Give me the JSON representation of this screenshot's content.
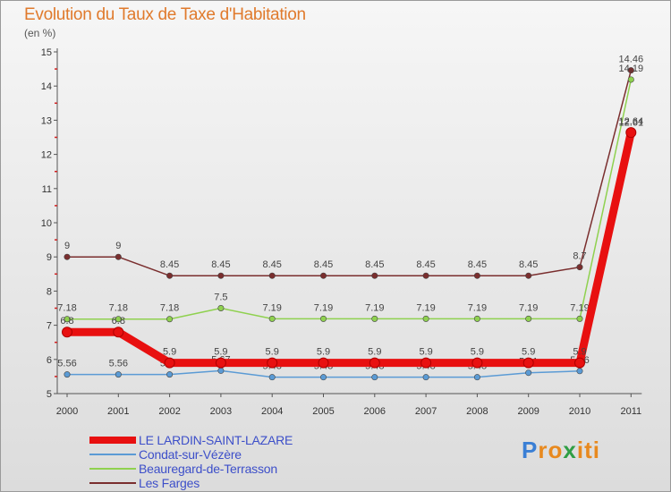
{
  "chart_data": {
    "type": "line",
    "title": "Evolution du Taux de Taxe d'Habitation",
    "ylabel": "(en %)",
    "xlabel": "",
    "x": [
      "2000",
      "2001",
      "2002",
      "2003",
      "2004",
      "2005",
      "2006",
      "2007",
      "2008",
      "2009",
      "2010",
      "2011"
    ],
    "ylim": [
      5,
      15
    ],
    "yticks": [
      "5",
      "6",
      "7",
      "8",
      "9",
      "10",
      "11",
      "12",
      "13",
      "14",
      "15"
    ],
    "legend_position": "bottom-left",
    "series": [
      {
        "name": "Les Farges",
        "color": "#7a2e2e",
        "values": [
          9,
          9,
          8.45,
          8.45,
          8.45,
          8.45,
          8.45,
          8.45,
          8.45,
          8.45,
          8.7,
          14.46
        ],
        "labels": [
          "9",
          "9",
          "8.45",
          "8.45",
          "8.45",
          "8.45",
          "8.45",
          "8.45",
          "8.45",
          "8.45",
          "8.7",
          "14.46"
        ]
      },
      {
        "name": "Beauregard-de-Terrasson",
        "color": "#8fd14f",
        "values": [
          7.18,
          7.18,
          7.18,
          7.5,
          7.19,
          7.19,
          7.19,
          7.19,
          7.19,
          7.19,
          7.19,
          14.19
        ],
        "labels": [
          "7.18",
          "7.18",
          "7.18",
          "7.5",
          "7.19",
          "7.19",
          "7.19",
          "7.19",
          "7.19",
          "7.19",
          "7.19",
          "14.19"
        ]
      },
      {
        "name": "Condat-sur-Vézère",
        "color": "#5b9bd5",
        "values": [
          5.56,
          5.56,
          5.56,
          5.67,
          5.48,
          5.48,
          5.48,
          5.48,
          5.48,
          5.61,
          5.66,
          12.61
        ],
        "labels": [
          "5.56",
          "5.56",
          "5.56",
          "5.67",
          "5.48",
          "5.48",
          "5.48",
          "5.48",
          "5.48",
          "5.61",
          "5.66",
          "12.61"
        ]
      },
      {
        "name": "LE LARDIN-SAINT-LAZARE",
        "color": "#e81010",
        "values": [
          6.8,
          6.8,
          5.9,
          5.9,
          5.9,
          5.9,
          5.9,
          5.9,
          5.9,
          5.9,
          5.9,
          12.64
        ],
        "labels": [
          "6.8",
          "6.8",
          "5.9",
          "5.9",
          "5.9",
          "5.9",
          "5.9",
          "5.9",
          "5.9",
          "5.9",
          "5.9",
          "12.64"
        ]
      }
    ]
  },
  "legend": {
    "items": [
      {
        "label": "LE LARDIN-SAINT-LAZARE",
        "color": "#e81010"
      },
      {
        "label": "Condat-sur-Vézère",
        "color": "#5b9bd5"
      },
      {
        "label": "Beauregard-de-Terrasson",
        "color": "#8fd14f"
      },
      {
        "label": "Les Farges",
        "color": "#7a2e2e"
      }
    ]
  },
  "logo": {
    "letters": [
      "P",
      "r",
      "o",
      "x",
      "i",
      "t",
      "i"
    ],
    "colors": [
      "#3a7fd5",
      "#e8891e",
      "#e8891e",
      "#2f9e44",
      "#e8891e",
      "#e8891e",
      "#e8891e"
    ]
  }
}
